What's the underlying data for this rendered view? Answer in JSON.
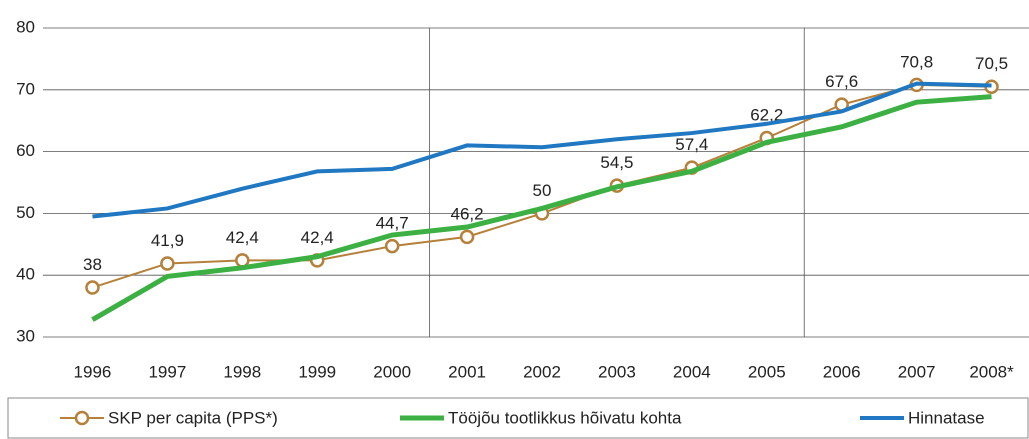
{
  "chart_data": {
    "type": "line",
    "categories": [
      "1996",
      "1997",
      "1998",
      "1999",
      "2000",
      "2001",
      "2002",
      "2003",
      "2004",
      "2005",
      "2006",
      "2007",
      "2008*"
    ],
    "series": [
      {
        "name": "SKP per capita (PPS*)",
        "color": "#b5803a",
        "values": [
          38,
          41.9,
          42.4,
          42.4,
          44.7,
          46.2,
          50,
          54.5,
          57.4,
          62.2,
          67.6,
          70.8,
          70.5
        ],
        "value_labels": [
          "38",
          "41,9",
          "42,4",
          "42,4",
          "44,7",
          "46,2",
          "50",
          "54,5",
          "57,4",
          "62,2",
          "67,6",
          "70,8",
          "70,5"
        ]
      },
      {
        "name": "Tööjõu tootlikkus hõivatu kohta",
        "color": "#3cb043",
        "values": [
          32.8,
          39.8,
          41.2,
          43,
          46.5,
          47.8,
          50.8,
          54.3,
          56.8,
          61.5,
          64,
          68,
          68.9
        ]
      },
      {
        "name": "Hinnatase",
        "color": "#1f78c1",
        "values": [
          49.5,
          50.8,
          54,
          56.8,
          57.2,
          61,
          60.7,
          62,
          63,
          64.5,
          66.5,
          71,
          70.7
        ]
      }
    ],
    "ylim": [
      30,
      80
    ],
    "yticks": [
      30,
      40,
      50,
      60,
      70,
      80
    ],
    "grid": true
  }
}
